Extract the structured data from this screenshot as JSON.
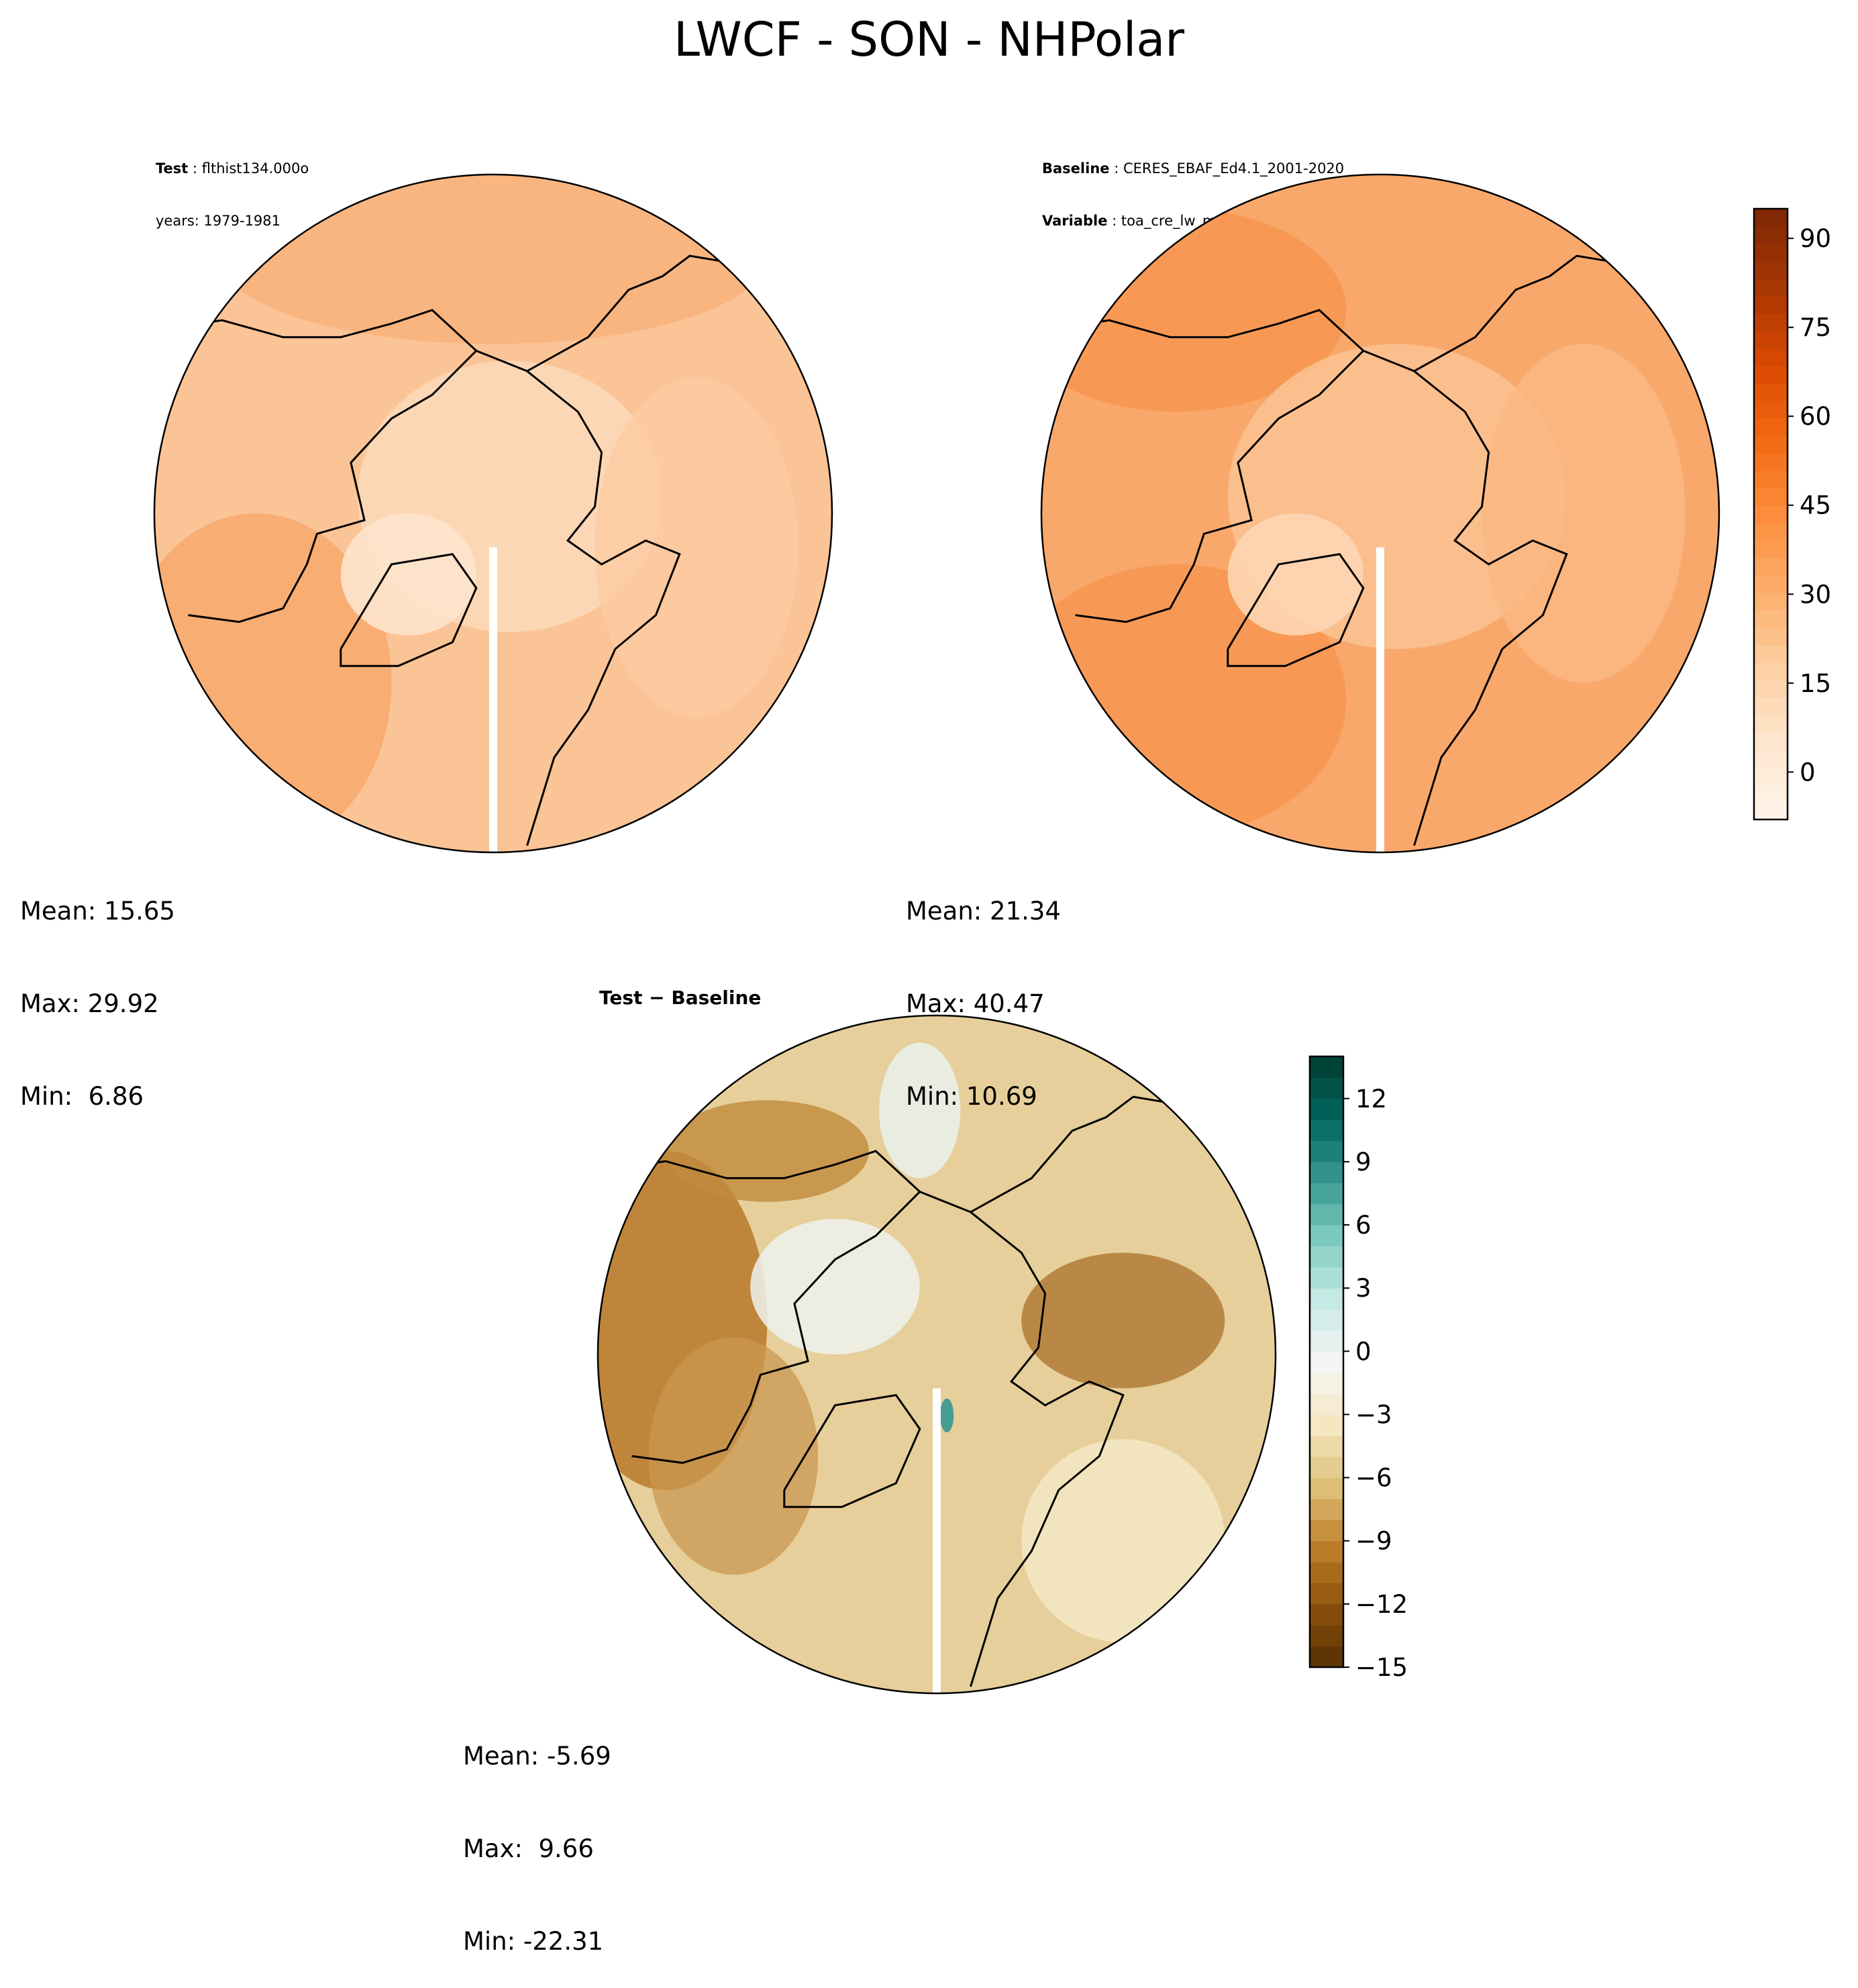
{
  "title": "LWCF - SON - NHPolar",
  "panels": [
    {
      "id": "test",
      "meta": [
        {
          "key": "Test",
          "value": "flthist134.000o"
        },
        {
          "key": "",
          "value": "years: 1979-1981"
        }
      ],
      "stats": {
        "mean": "Mean: 15.65",
        "max": "Max: 29.92",
        "min": "Min:  6.86"
      }
    },
    {
      "id": "baseline",
      "meta": [
        {
          "key": "Baseline",
          "value": "CERES_EBAF_Ed4.1_2001-2020"
        },
        {
          "key": "Variable",
          "value": "toa_cre_lw_mon"
        }
      ],
      "stats": {
        "mean": "Mean: 21.34",
        "max": "Max: 40.47",
        "min": "Min: 10.69"
      }
    },
    {
      "id": "diff",
      "title": "Test − Baseline",
      "stats": {
        "mean": "Mean: -5.69",
        "max": "Max:  9.66",
        "min": "Min: -22.31"
      }
    }
  ],
  "colors": {
    "oranges": [
      "#fff5eb",
      "#fee6ce",
      "#fdd0a2",
      "#fdae6b",
      "#fd8d3c",
      "#f16913",
      "#d94801",
      "#a63603",
      "#7f2704"
    ],
    "brbg": [
      "#543005",
      "#8c510a",
      "#bf812d",
      "#dfc27d",
      "#f6e8c3",
      "#f5f5f5",
      "#c7eae5",
      "#80cdc1",
      "#35978f",
      "#01665e",
      "#003c30"
    ],
    "test_field": "#fbc496",
    "baseline_field": "#f9a86b",
    "diff_field": "#e6cf9a"
  },
  "chart_data": [
    {
      "type": "heatmap",
      "panel": "Test",
      "projection": "north polar stereographic",
      "mean": 15.65,
      "max": 29.92,
      "min": 6.86,
      "colorbar": {
        "shared_with": "Baseline"
      }
    },
    {
      "type": "heatmap",
      "panel": "Baseline",
      "projection": "north polar stereographic",
      "mean": 21.34,
      "max": 40.47,
      "min": 10.69,
      "colorbar": {
        "range": [
          -8,
          95
        ],
        "ticks": [
          "0",
          "15",
          "30",
          "45",
          "60",
          "75",
          "90"
        ],
        "tick_values": [
          0,
          15,
          30,
          45,
          60,
          75,
          90
        ],
        "levels": 35
      }
    },
    {
      "type": "heatmap",
      "panel": "Test − Baseline",
      "projection": "north polar stereographic",
      "mean": -5.69,
      "max": 9.66,
      "min": -22.31,
      "colorbar": {
        "range": [
          -15,
          14
        ],
        "ticks": [
          "−15",
          "−12",
          "−9",
          "−6",
          "−3",
          "0",
          "3",
          "6",
          "9",
          "12"
        ],
        "tick_values": [
          -15,
          -12,
          -9,
          -6,
          -3,
          0,
          3,
          6,
          9,
          12
        ],
        "levels": 29
      }
    }
  ]
}
